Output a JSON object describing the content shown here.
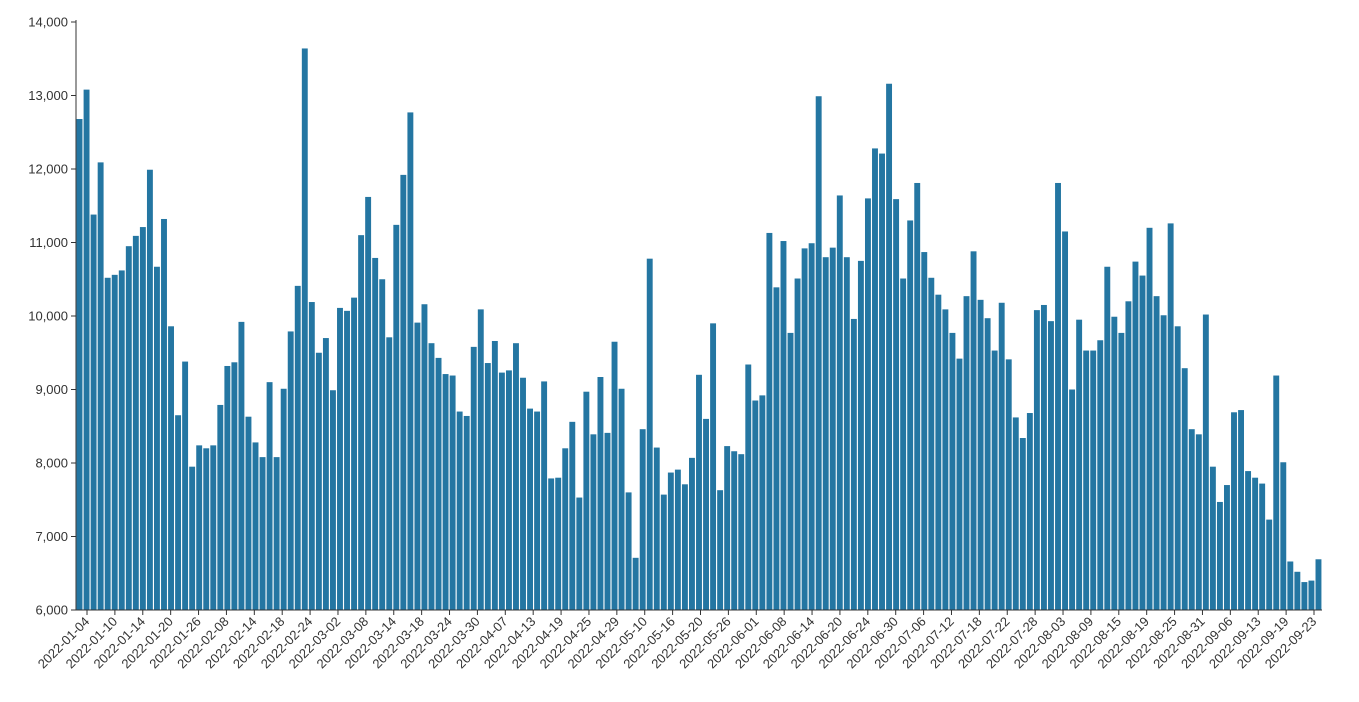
{
  "chart_data": {
    "type": "bar",
    "title": "",
    "xlabel": "",
    "ylabel": "",
    "ylim": [
      6000,
      14000
    ],
    "y_ticks": [
      6000,
      7000,
      8000,
      9000,
      10000,
      11000,
      12000,
      13000,
      14000
    ],
    "y_tick_labels": [
      "6,000",
      "7,000",
      "8,000",
      "9,000",
      "10,000",
      "11,000",
      "12,000",
      "13,000",
      "14,000"
    ],
    "x_tick_labels": [
      "2022-01-04",
      "2022-01-10",
      "2022-01-14",
      "2022-01-20",
      "2022-01-26",
      "2022-02-08",
      "2022-02-14",
      "2022-02-18",
      "2022-02-24",
      "2022-03-02",
      "2022-03-08",
      "2022-03-14",
      "2022-03-18",
      "2022-03-24",
      "2022-03-30",
      "2022-04-07",
      "2022-04-13",
      "2022-04-19",
      "2022-04-25",
      "2022-04-29",
      "2022-05-10",
      "2022-05-16",
      "2022-05-20",
      "2022-05-26",
      "2022-06-01",
      "2022-06-08",
      "2022-06-14",
      "2022-06-20",
      "2022-06-24",
      "2022-06-30",
      "2022-07-06",
      "2022-07-12",
      "2022-07-18",
      "2022-07-22",
      "2022-07-28",
      "2022-08-03",
      "2022-08-09",
      "2022-08-15",
      "2022-08-19",
      "2022-08-25",
      "2022-08-31",
      "2022-09-06",
      "2022-09-13",
      "2022-09-19",
      "2022-09-23"
    ],
    "grid": false,
    "bar_color": "#2476a2",
    "values": [
      12680,
      13080,
      11380,
      12090,
      10520,
      10560,
      10620,
      10950,
      11090,
      11210,
      11990,
      10670,
      11320,
      9860,
      8650,
      9380,
      7950,
      8240,
      8200,
      8240,
      8790,
      9320,
      9370,
      9920,
      8630,
      8280,
      8080,
      9100,
      8080,
      9010,
      9790,
      10410,
      13640,
      10190,
      9500,
      9700,
      8990,
      10110,
      10070,
      10250,
      11100,
      11620,
      10790,
      10500,
      9710,
      11240,
      11920,
      12770,
      9910,
      10160,
      9630,
      9430,
      9210,
      9190,
      8700,
      8640,
      9580,
      10090,
      9360,
      9660,
      9230,
      9260,
      9630,
      9160,
      8740,
      8700,
      9110,
      7790,
      7800,
      8200,
      8560,
      7530,
      8970,
      8390,
      9170,
      8410,
      9650,
      9010,
      7600,
      6710,
      8460,
      10780,
      8210,
      7570,
      7870,
      7910,
      7710,
      8070,
      9200,
      8600,
      9900,
      7630,
      8230,
      8160,
      8120,
      9340,
      8850,
      8920,
      11130,
      10390,
      11020,
      9770,
      10510,
      10920,
      10990,
      12990,
      10800,
      10930,
      11640,
      10800,
      9960,
      10750,
      11600,
      12280,
      12210,
      13160,
      11590,
      10510,
      11300,
      11810,
      10870,
      10520,
      10290,
      10090,
      9770,
      9420,
      10270,
      10880,
      10220,
      9970,
      9530,
      10180,
      9410,
      8620,
      8340,
      8680,
      10080,
      10150,
      9930,
      11810,
      11150,
      9000,
      9950,
      9530,
      9530,
      9670,
      10670,
      9990,
      9770,
      10200,
      10740,
      10550,
      11200,
      10270,
      10010,
      11260,
      9860,
      9290,
      8460,
      8390,
      10020,
      7950,
      7470,
      7700,
      8690,
      8720,
      7890,
      7800,
      7720,
      7230,
      9190,
      8010,
      6660,
      6520,
      6380,
      6400,
      6690
    ]
  }
}
